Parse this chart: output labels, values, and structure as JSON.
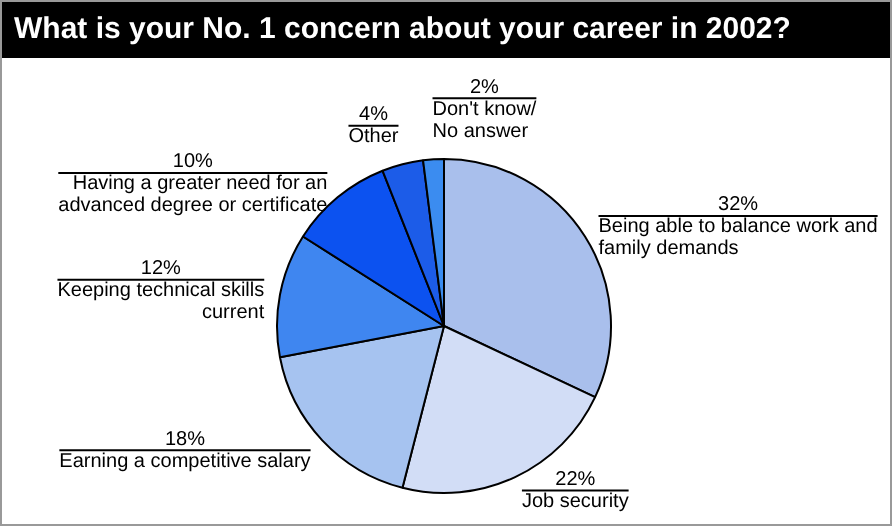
{
  "chart_data": {
    "type": "pie",
    "title": "What is your No. 1 concern about your career in 2002?",
    "categories": [
      "Being able to balance work and family demands",
      "Job security",
      "Earning a competitive salary",
      "Keeping technical skills current",
      "Having a greater need for an advanced degree or certificate",
      "Other",
      "Don't know/ No answer"
    ],
    "values": [
      32,
      22,
      18,
      12,
      10,
      4,
      2
    ],
    "value_labels": [
      "32%",
      "22%",
      "18%",
      "12%",
      "10%",
      "4%",
      "2%"
    ],
    "colors": [
      "#a9bfec",
      "#d2ddf6",
      "#a6c3f0",
      "#3f86f0",
      "#0c52f0",
      "#1c5ce8",
      "#3b8cf0"
    ]
  }
}
